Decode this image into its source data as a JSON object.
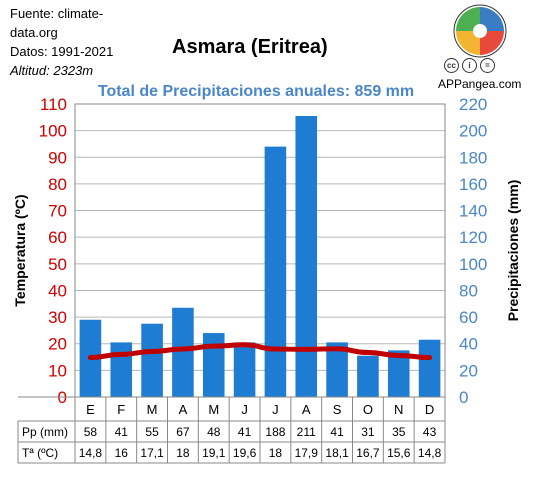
{
  "source": {
    "line1": "Fuente: climate-",
    "line2": "data.org",
    "line3": "Datos: 1991-2021",
    "line4": "Altitud: 2323m"
  },
  "brand": "APPangea.com",
  "logo_icon": "puzzle-logo-icon",
  "license_icons": [
    "cc-icon",
    "attribution-icon",
    "no-derivatives-icon"
  ],
  "colors": {
    "precip_bar": "#1f7cd3",
    "temp_line": "#c00000",
    "left_axis": "#d00000",
    "right_axis": "#4a86c8",
    "subtitle": "#4a86c8",
    "grid": "#b8b8b8"
  },
  "chart_data": {
    "type": "bar",
    "title": "Asmara (Eritrea)",
    "subtitle": "Total de Precipitaciones anuales: 859 mm",
    "categories": [
      "E",
      "F",
      "M",
      "A",
      "M",
      "J",
      "J",
      "A",
      "S",
      "O",
      "N",
      "D"
    ],
    "series": [
      {
        "name": "Pp (mm)",
        "type": "bar",
        "axis": "right",
        "values": [
          58,
          41,
          55,
          67,
          48,
          41,
          188,
          211,
          41,
          31,
          35,
          43
        ]
      },
      {
        "name": "Tª (ºC)",
        "type": "line",
        "axis": "left",
        "values": [
          14.8,
          16,
          17.1,
          18,
          19.1,
          19.6,
          18,
          17.9,
          18.1,
          16.7,
          15.6,
          14.8
        ]
      }
    ],
    "ylabel": "Temperatura (ºC)",
    "y2label": "Precipitaciones (mm)",
    "ylim": [
      0,
      110
    ],
    "y2lim": [
      0,
      220
    ],
    "yticks": [
      0,
      10,
      20,
      30,
      40,
      50,
      60,
      70,
      80,
      90,
      100,
      110
    ],
    "y2ticks": [
      0,
      20,
      40,
      60,
      80,
      100,
      120,
      140,
      160,
      180,
      200,
      220
    ],
    "grid": true,
    "table_rows": [
      {
        "label": "Pp (mm)",
        "cells": [
          "58",
          "41",
          "55",
          "67",
          "48",
          "41",
          "188",
          "211",
          "41",
          "31",
          "35",
          "43"
        ]
      },
      {
        "label": "Tª (ºC)",
        "cells": [
          "14,8",
          "16",
          "17,1",
          "18",
          "19,1",
          "19,6",
          "18",
          "17,9",
          "18,1",
          "16,7",
          "15,6",
          "14,8"
        ]
      }
    ]
  }
}
